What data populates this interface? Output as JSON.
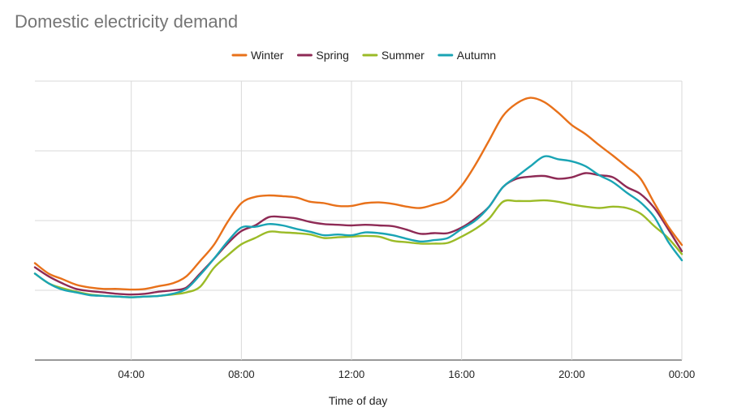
{
  "chart_data": {
    "type": "line",
    "title": "Domestic electricity demand",
    "xlabel": "Time of day",
    "ylabel": "",
    "x_ticks": [
      "04:00",
      "08:00",
      "12:00",
      "16:00",
      "20:00",
      "00:00"
    ],
    "x_tick_hours": [
      4,
      8,
      12,
      16,
      20,
      24
    ],
    "xlim": [
      0.5,
      24
    ],
    "ylim": [
      0,
      4
    ],
    "y_gridlines": [
      0,
      1,
      2,
      3,
      4
    ],
    "y_tick_labels_visible": false,
    "grid": true,
    "legend_position": "top-center",
    "x": [
      0.5,
      1,
      1.5,
      2,
      2.5,
      3,
      3.5,
      4,
      4.5,
      5,
      5.5,
      6,
      6.5,
      7,
      7.5,
      8,
      8.5,
      9,
      9.5,
      10,
      10.5,
      11,
      11.5,
      12,
      12.5,
      13,
      13.5,
      14,
      14.5,
      15,
      15.5,
      16,
      16.5,
      17,
      17.5,
      18,
      18.5,
      19,
      19.5,
      20,
      20.5,
      21,
      21.5,
      22,
      22.5,
      23,
      23.5,
      24
    ],
    "series": [
      {
        "name": "Winter",
        "color": "#E8711A",
        "values": [
          1.39,
          1.24,
          1.16,
          1.08,
          1.04,
          1.02,
          1.02,
          1.01,
          1.02,
          1.06,
          1.1,
          1.2,
          1.42,
          1.65,
          1.98,
          2.25,
          2.34,
          2.36,
          2.35,
          2.33,
          2.27,
          2.25,
          2.21,
          2.21,
          2.25,
          2.26,
          2.24,
          2.2,
          2.18,
          2.23,
          2.3,
          2.5,
          2.8,
          3.15,
          3.5,
          3.68,
          3.76,
          3.7,
          3.55,
          3.37,
          3.24,
          3.08,
          2.93,
          2.77,
          2.6,
          2.25,
          1.92,
          1.65
        ]
      },
      {
        "name": "Spring",
        "color": "#8E2A55",
        "values": [
          1.33,
          1.2,
          1.1,
          1.02,
          0.99,
          0.97,
          0.95,
          0.94,
          0.95,
          0.98,
          1.0,
          1.04,
          1.24,
          1.45,
          1.67,
          1.85,
          1.93,
          2.05,
          2.05,
          2.03,
          1.98,
          1.95,
          1.94,
          1.93,
          1.94,
          1.93,
          1.92,
          1.87,
          1.81,
          1.82,
          1.82,
          1.9,
          2.03,
          2.2,
          2.48,
          2.6,
          2.63,
          2.64,
          2.6,
          2.62,
          2.68,
          2.65,
          2.62,
          2.48,
          2.38,
          2.18,
          1.88,
          1.56
        ]
      },
      {
        "name": "Summer",
        "color": "#9BBB27",
        "values": [
          1.24,
          1.1,
          1.03,
          0.98,
          0.94,
          0.92,
          0.91,
          0.9,
          0.91,
          0.92,
          0.94,
          0.97,
          1.05,
          1.32,
          1.5,
          1.66,
          1.75,
          1.84,
          1.83,
          1.82,
          1.8,
          1.75,
          1.76,
          1.77,
          1.78,
          1.77,
          1.71,
          1.69,
          1.67,
          1.67,
          1.68,
          1.77,
          1.88,
          2.03,
          2.27,
          2.28,
          2.28,
          2.29,
          2.27,
          2.23,
          2.2,
          2.18,
          2.2,
          2.18,
          2.1,
          1.92,
          1.75,
          1.52
        ]
      },
      {
        "name": "Autumn",
        "color": "#1AA4B4",
        "values": [
          1.24,
          1.1,
          1.01,
          0.97,
          0.93,
          0.92,
          0.91,
          0.9,
          0.91,
          0.92,
          0.95,
          1.02,
          1.22,
          1.45,
          1.7,
          1.9,
          1.91,
          1.95,
          1.93,
          1.88,
          1.84,
          1.79,
          1.8,
          1.79,
          1.83,
          1.82,
          1.79,
          1.74,
          1.7,
          1.72,
          1.75,
          1.88,
          2.0,
          2.2,
          2.48,
          2.63,
          2.78,
          2.92,
          2.88,
          2.85,
          2.78,
          2.65,
          2.55,
          2.4,
          2.26,
          2.05,
          1.7,
          1.43
        ]
      }
    ]
  }
}
